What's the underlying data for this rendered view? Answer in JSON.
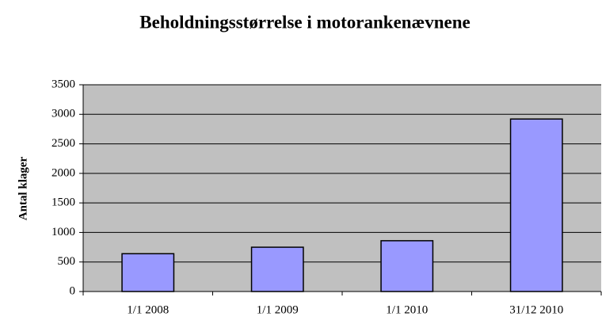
{
  "chart_data": {
    "type": "bar",
    "title": "Beholdningsstørrelse i motorankenævnene",
    "y_label": "Antal klager",
    "categories": [
      "1/1 2008",
      "1/1 2009",
      "1/1 2010",
      "31/12 2010"
    ],
    "values": [
      640,
      750,
      860,
      2920
    ],
    "color": "#9999ff",
    "ylim": [
      0,
      3500
    ],
    "yticks": [
      0,
      500,
      1000,
      1500,
      2000,
      2500,
      3000,
      3500
    ],
    "grid": true
  }
}
